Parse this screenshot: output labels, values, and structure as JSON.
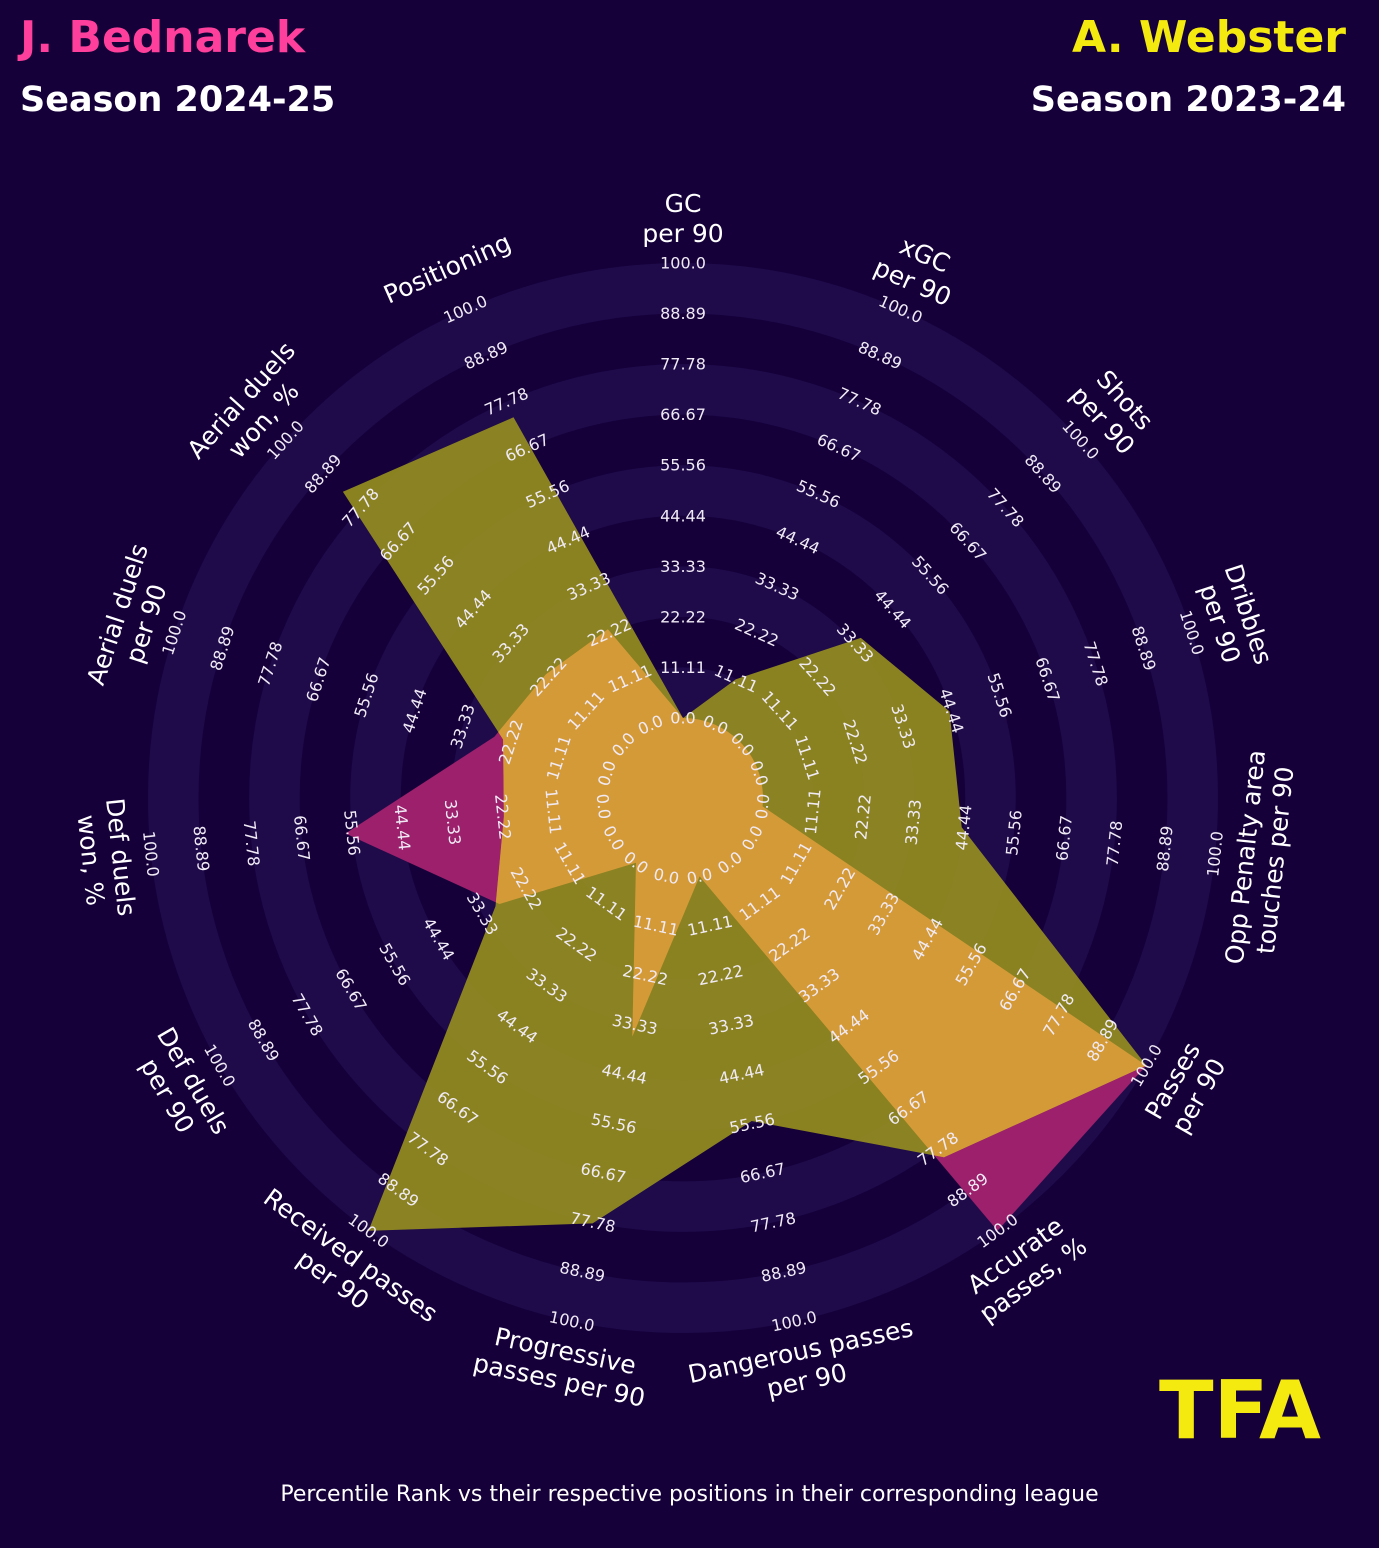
{
  "header": {
    "player1": {
      "name": "J. Bednarek",
      "season": "Season 2024-25"
    },
    "player2": {
      "name": "A. Webster",
      "season": "Season 2023-24"
    }
  },
  "footer": {
    "caption": "Percentile Rank vs their respective positions in their corresponding league"
  },
  "logo": {
    "text": "TFA"
  },
  "colors": {
    "background": "#15003a",
    "ring": "#1f0b4a",
    "player1": "#ff3f9c",
    "player2": "#f5ea0f",
    "player1_fill": "#a3226e",
    "player2_fill": "#97901f",
    "overlap_fill": "#d59a38"
  },
  "chart_data": {
    "type": "radar",
    "title": "",
    "range": [
      0,
      100
    ],
    "ring_levels": [
      "0.0",
      "11.11",
      "22.22",
      "33.33",
      "44.44",
      "55.56",
      "66.67",
      "77.78",
      "88.89",
      "100.0"
    ],
    "axes": [
      {
        "label": [
          "GC",
          "per 90"
        ]
      },
      {
        "label": [
          "xGC",
          "per 90"
        ]
      },
      {
        "label": [
          "Shots",
          "per 90"
        ]
      },
      {
        "label": [
          "Dribbles",
          "per 90"
        ]
      },
      {
        "label": [
          "Opp Penalty area",
          "touches per 90"
        ]
      },
      {
        "label": [
          "Passes",
          "per 90"
        ]
      },
      {
        "label": [
          "Accurate",
          "passes, %"
        ]
      },
      {
        "label": [
          "Dangerous passes",
          "per 90"
        ]
      },
      {
        "label": [
          "Progressive",
          "passes per 90"
        ]
      },
      {
        "label": [
          "Received passes",
          "per 90"
        ]
      },
      {
        "label": [
          "Def duels",
          "per 90"
        ]
      },
      {
        "label": [
          "Def duels",
          "won, %"
        ]
      },
      {
        "label": [
          "Aerial duels",
          "per 90"
        ]
      },
      {
        "label": [
          "Aerial duels",
          "won, %"
        ]
      },
      {
        "label": [
          "Positioning"
        ]
      }
    ],
    "series": [
      {
        "name": "J. Bednarek",
        "values": [
          0,
          0,
          0,
          0,
          0,
          100,
          100,
          0,
          36,
          0,
          29,
          57,
          26,
          23,
          23
        ]
      },
      {
        "name": "A. Webster",
        "values": [
          0,
          11,
          35,
          44,
          44,
          100,
          80,
          55,
          78,
          100,
          30,
          22,
          24,
          83,
          74
        ]
      }
    ]
  }
}
